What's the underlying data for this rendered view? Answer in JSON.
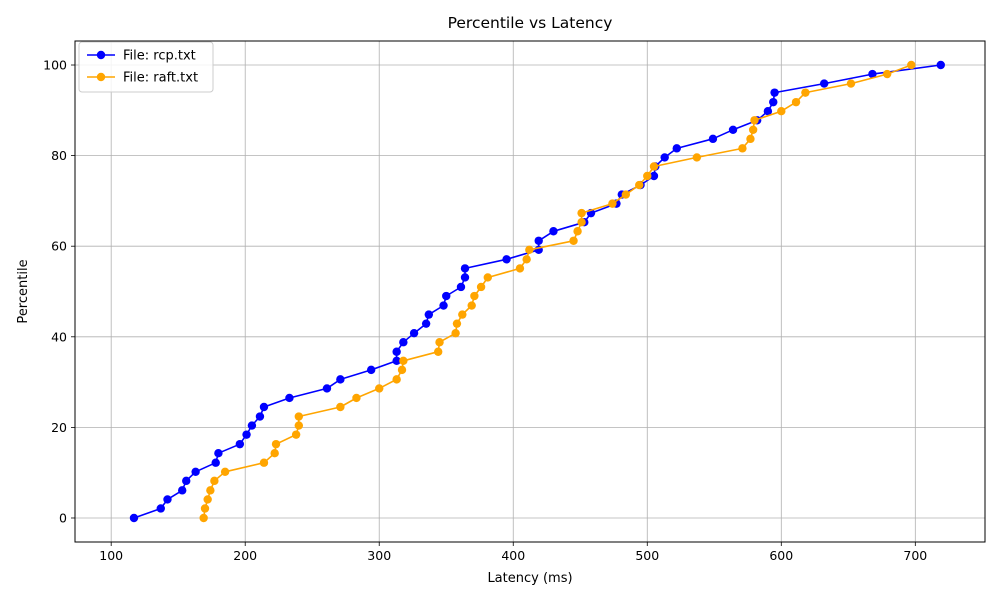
{
  "chart_data": {
    "type": "line",
    "title": "Percentile vs Latency",
    "xlabel": "Latency (ms)",
    "ylabel": "Percentile",
    "xlim": [
      73,
      752
    ],
    "ylim": [
      -5.3,
      105.3
    ],
    "xticks": [
      100,
      200,
      300,
      400,
      500,
      600,
      700
    ],
    "yticks": [
      0,
      20,
      40,
      60,
      80,
      100
    ],
    "grid": true,
    "legend_position": "upper-left",
    "series": [
      {
        "name": "File: rcp.txt",
        "color": "#0000ff",
        "points": [
          [
            117,
            0
          ],
          [
            137,
            2.1
          ],
          [
            142,
            4.1
          ],
          [
            153,
            6.1
          ],
          [
            156,
            8.2
          ],
          [
            163,
            10.2
          ],
          [
            178,
            12.2
          ],
          [
            180,
            14.3
          ],
          [
            196,
            16.3
          ],
          [
            201,
            18.4
          ],
          [
            205,
            20.4
          ],
          [
            211,
            22.4
          ],
          [
            214,
            24.5
          ],
          [
            233,
            26.5
          ],
          [
            261,
            28.6
          ],
          [
            271,
            30.6
          ],
          [
            294,
            32.7
          ],
          [
            313,
            34.7
          ],
          [
            313,
            36.7
          ],
          [
            318,
            38.8
          ],
          [
            326,
            40.8
          ],
          [
            335,
            42.9
          ],
          [
            337,
            44.9
          ],
          [
            348,
            46.9
          ],
          [
            350,
            49
          ],
          [
            361,
            51
          ],
          [
            364,
            53.1
          ],
          [
            364,
            55.1
          ],
          [
            395,
            57.1
          ],
          [
            419,
            59.2
          ],
          [
            419,
            61.2
          ],
          [
            430,
            63.3
          ],
          [
            453,
            65.3
          ],
          [
            458,
            67.3
          ],
          [
            477,
            69.4
          ],
          [
            481,
            71.4
          ],
          [
            495,
            73.5
          ],
          [
            505,
            75.5
          ],
          [
            506,
            77.6
          ],
          [
            513,
            79.6
          ],
          [
            522,
            81.6
          ],
          [
            549,
            83.7
          ],
          [
            564,
            85.7
          ],
          [
            582,
            87.8
          ],
          [
            590,
            89.8
          ],
          [
            594,
            91.8
          ],
          [
            595,
            93.9
          ],
          [
            632,
            95.9
          ],
          [
            668,
            98
          ],
          [
            719,
            100
          ]
        ]
      },
      {
        "name": "File: raft.txt",
        "color": "#ffa500",
        "points": [
          [
            169,
            0
          ],
          [
            170,
            2.1
          ],
          [
            172,
            4.1
          ],
          [
            174,
            6.1
          ],
          [
            177,
            8.2
          ],
          [
            185,
            10.2
          ],
          [
            214,
            12.2
          ],
          [
            222,
            14.3
          ],
          [
            223,
            16.3
          ],
          [
            238,
            18.4
          ],
          [
            240,
            20.4
          ],
          [
            240,
            22.4
          ],
          [
            271,
            24.5
          ],
          [
            283,
            26.5
          ],
          [
            300,
            28.6
          ],
          [
            313,
            30.6
          ],
          [
            317,
            32.7
          ],
          [
            318,
            34.7
          ],
          [
            344,
            36.7
          ],
          [
            345,
            38.8
          ],
          [
            357,
            40.8
          ],
          [
            358,
            42.9
          ],
          [
            362,
            44.9
          ],
          [
            369,
            46.9
          ],
          [
            371,
            49
          ],
          [
            376,
            51
          ],
          [
            381,
            53.1
          ],
          [
            405,
            55.1
          ],
          [
            410,
            57.1
          ],
          [
            412,
            59.2
          ],
          [
            445,
            61.2
          ],
          [
            448,
            63.3
          ],
          [
            451,
            65.3
          ],
          [
            451,
            67.3
          ],
          [
            474,
            69.4
          ],
          [
            484,
            71.4
          ],
          [
            494,
            73.5
          ],
          [
            500,
            75.5
          ],
          [
            505,
            77.6
          ],
          [
            537,
            79.6
          ],
          [
            571,
            81.6
          ],
          [
            577,
            83.7
          ],
          [
            579,
            85.7
          ],
          [
            580,
            87.8
          ],
          [
            600,
            89.8
          ],
          [
            611,
            91.8
          ],
          [
            618,
            93.9
          ],
          [
            652,
            95.9
          ],
          [
            679,
            98
          ],
          [
            697,
            100
          ]
        ]
      }
    ]
  }
}
